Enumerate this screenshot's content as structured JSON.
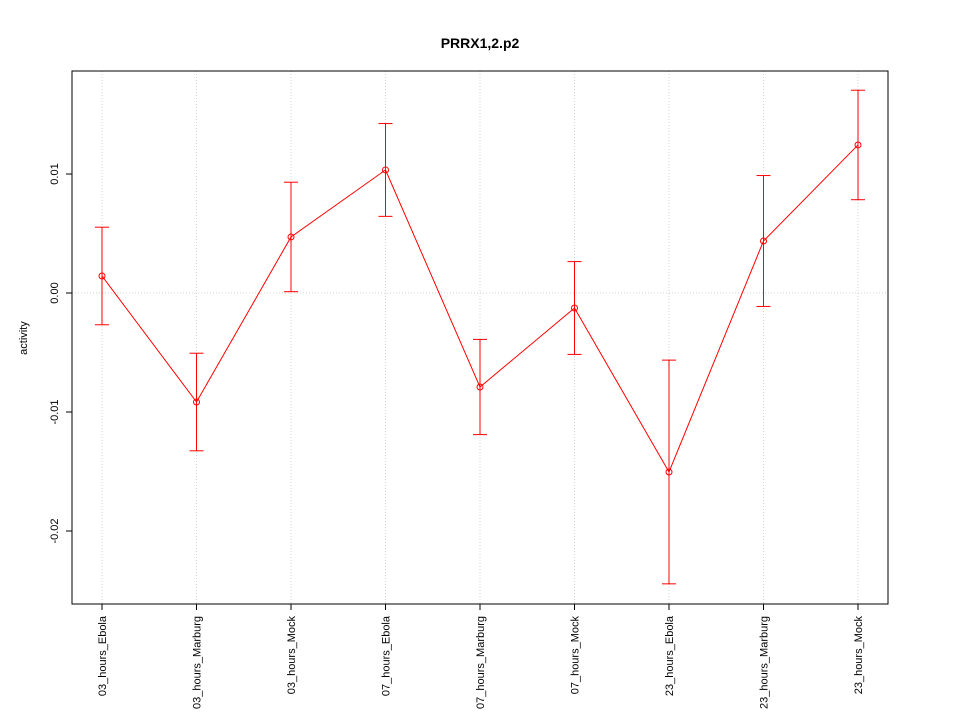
{
  "chart_data": {
    "type": "line",
    "title": "PRRX1,2.p2",
    "ylabel": "activity",
    "categories": [
      "03_hours_Ebola",
      "03_hours_Marburg",
      "03_hours_Mock",
      "07_hours_Ebola",
      "07_hours_Marburg",
      "07_hours_Mock",
      "23_hours_Ebola",
      "23_hours_Marburg",
      "23_hours_Mock"
    ],
    "values": [
      0.00143,
      -0.00916,
      0.00471,
      0.01034,
      -0.0079,
      -0.00126,
      -0.01504,
      0.00437,
      0.01244
    ],
    "errors": [
      0.0041,
      0.0041,
      0.0046,
      0.0039,
      0.004,
      0.0039,
      0.0094,
      0.0055,
      0.0046
    ],
    "color": "#ff0000",
    "ylim": [
      -0.026134,
      0.018655
    ],
    "yticks": [
      0.01,
      {
        "value": 0,
        "label": "0.00"
      },
      -0.01,
      -0.02
    ],
    "grid": true
  }
}
